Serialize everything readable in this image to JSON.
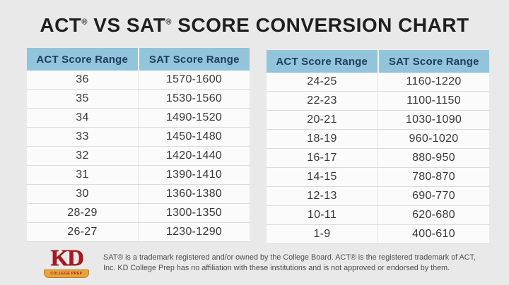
{
  "title": {
    "part1": "ACT",
    "reg": "®",
    "part2": " VS SAT",
    "part3": " SCORE CONVERSION CHART"
  },
  "chart_data": [
    {
      "type": "table",
      "columns": [
        "ACT Score Range",
        "SAT Score Range"
      ],
      "rows": [
        [
          "36",
          "1570-1600"
        ],
        [
          "35",
          "1530-1560"
        ],
        [
          "34",
          "1490-1520"
        ],
        [
          "33",
          "1450-1480"
        ],
        [
          "32",
          "1420-1440"
        ],
        [
          "31",
          "1390-1410"
        ],
        [
          "30",
          "1360-1380"
        ],
        [
          "28-29",
          "1300-1350"
        ],
        [
          "26-27",
          "1230-1290"
        ]
      ]
    },
    {
      "type": "table",
      "columns": [
        "ACT Score Range",
        "SAT Score Range"
      ],
      "rows": [
        [
          "24-25",
          "1160-1220"
        ],
        [
          "22-23",
          "1100-1150"
        ],
        [
          "20-21",
          "1030-1090"
        ],
        [
          "18-19",
          "960-1020"
        ],
        [
          "16-17",
          "880-950"
        ],
        [
          "14-15",
          "780-870"
        ],
        [
          "12-13",
          "690-770"
        ],
        [
          "10-11",
          "620-680"
        ],
        [
          "1-9",
          "400-610"
        ]
      ]
    }
  ],
  "footer": {
    "logo": {
      "text": "KD",
      "banner": "COLLEGE PREP"
    },
    "disclaimer_line1": "SAT® is a trademark registered and/or owned by the College Board. ACT® is the registered trademark of ACT,",
    "disclaimer_line2": "Inc. KD College Prep has no affiliation with these institutions and is not approved or endorsed by them."
  },
  "colors": {
    "background": "#e9e9e9",
    "header_bg": "#92c4dc",
    "header_text": "#1d3e5c",
    "body_bg": "#fbfbfb",
    "body_text": "#383838",
    "title_text": "#1f1f1f",
    "logo_red": "#a8191f",
    "ribbon_gold": "#e8a43c",
    "disclaimer_text": "#4d4d4d"
  }
}
